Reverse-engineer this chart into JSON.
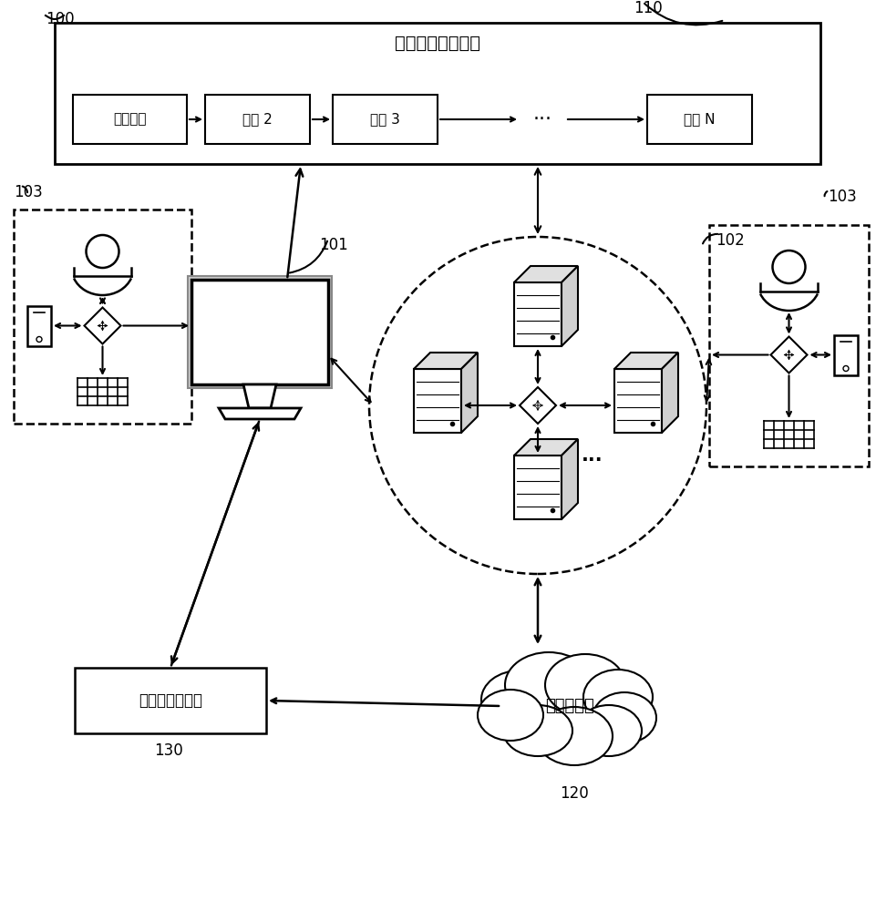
{
  "bg_color": "#ffffff",
  "label_100": "100",
  "label_110": "110",
  "label_101": "101",
  "label_102": "102",
  "label_103a": "103",
  "label_103b": "103",
  "label_130": "130",
  "label_120": "120",
  "blockchain_title": "区块链分布式账本",
  "block0": "初始区块",
  "block1": "区块 2",
  "block2": "区块 3",
  "block3": "区块 N",
  "dots": "···",
  "db_catalog": "目录文件数据库",
  "db_offchain": "链下数据库"
}
